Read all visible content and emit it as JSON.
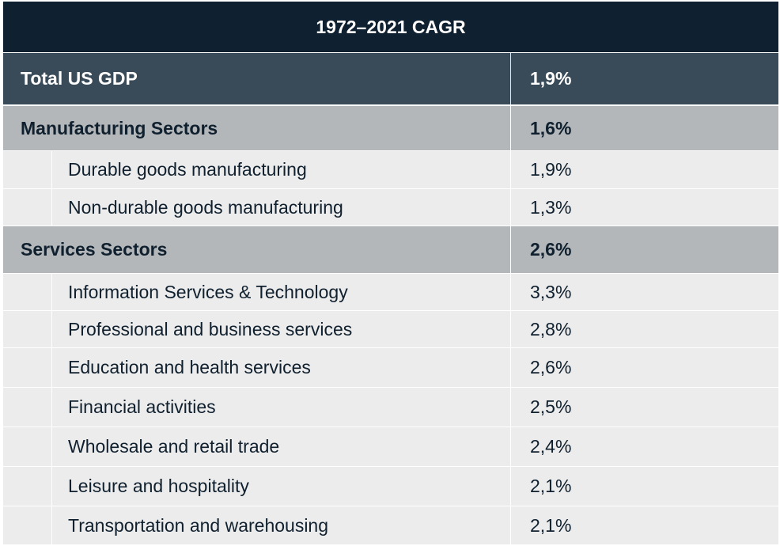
{
  "chart_data": {
    "type": "table",
    "title": "1972–2021 CAGR",
    "rows": [
      {
        "label": "Total US GDP",
        "value": "1,9%",
        "kind": "total"
      },
      {
        "label": "Manufacturing Sectors",
        "value": "1,6%",
        "kind": "section"
      },
      {
        "label": "Durable goods manufacturing",
        "value": "1,9%",
        "kind": "sub"
      },
      {
        "label": "Non-durable goods manufacturing",
        "value": "1,3%",
        "kind": "sub"
      },
      {
        "label": "Services Sectors",
        "value": "2,6%",
        "kind": "section"
      },
      {
        "label": "Information Services & Technology",
        "value": "3,3%",
        "kind": "sub"
      },
      {
        "label": "Professional and business services",
        "value": "2,8%",
        "kind": "sub"
      },
      {
        "label": "Education and health services",
        "value": "2,6%",
        "kind": "sub"
      },
      {
        "label": "Financial activities",
        "value": "2,5%",
        "kind": "sub"
      },
      {
        "label": "Wholesale and retail trade",
        "value": "2,4%",
        "kind": "sub"
      },
      {
        "label": "Leisure and hospitality",
        "value": "2,1%",
        "kind": "sub"
      },
      {
        "label": "Transportation and warehousing",
        "value": "2,1%",
        "kind": "sub"
      }
    ]
  },
  "colors": {
    "header_bg": "#0f2030",
    "total_bg": "#394a59",
    "section_bg": "#b3b7ba",
    "sub_bg": "#ececec",
    "text_dark": "#10202e",
    "text_light": "#ffffff"
  }
}
